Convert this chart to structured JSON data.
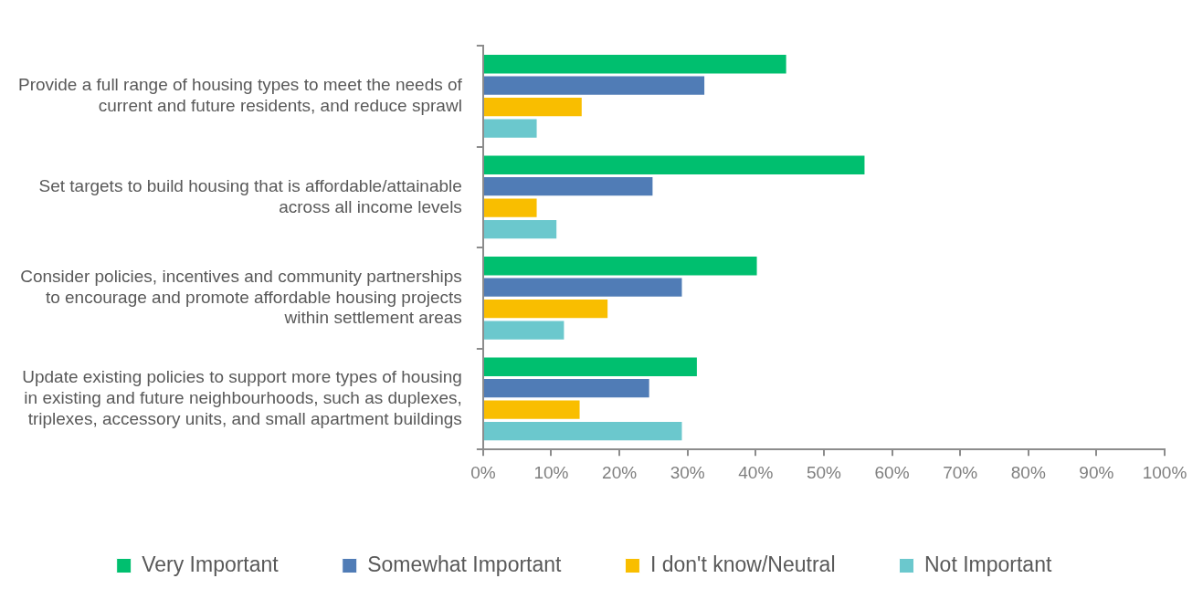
{
  "chart_data": {
    "type": "bar",
    "orientation": "horizontal",
    "categories": [
      "Provide a full range of housing types to meet the needs of current and future residents, and reduce sprawl",
      "Set targets to build housing that is affordable/attainable across all income levels",
      "Consider policies, incentives and community partnerships to encourage and promote affordable housing projects within settlement areas",
      "Update existing policies to support more types of housing in existing and future neighbourhoods, such as duplexes, triplexes, accessory units, and small apartment buildings"
    ],
    "series": [
      {
        "name": "Very Important",
        "color": "#00bf6f",
        "values": [
          44.6,
          56.1,
          40.3,
          31.5
        ]
      },
      {
        "name": "Somewhat Important",
        "color": "#507cb6",
        "values": [
          32.6,
          25.0,
          29.3,
          24.5
        ]
      },
      {
        "name": "I don't know/Neutral",
        "color": "#f9be00",
        "values": [
          14.6,
          8.0,
          18.4,
          14.3
        ]
      },
      {
        "name": "Not Important",
        "color": "#6bc8cd",
        "values": [
          8.0,
          10.9,
          12.0,
          29.3
        ]
      }
    ],
    "xlim": [
      0,
      100
    ],
    "xticks": [
      {
        "value": 0,
        "label": "0%"
      },
      {
        "value": 10,
        "label": "10%"
      },
      {
        "value": 20,
        "label": "20%"
      },
      {
        "value": 30,
        "label": "30%"
      },
      {
        "value": 40,
        "label": "40%"
      },
      {
        "value": 50,
        "label": "50%"
      },
      {
        "value": 60,
        "label": "60%"
      },
      {
        "value": 70,
        "label": "70%"
      },
      {
        "value": 80,
        "label": "80%"
      },
      {
        "value": 90,
        "label": "90%"
      },
      {
        "value": 100,
        "label": "100%"
      }
    ],
    "grid": false,
    "legend": "bottom"
  }
}
